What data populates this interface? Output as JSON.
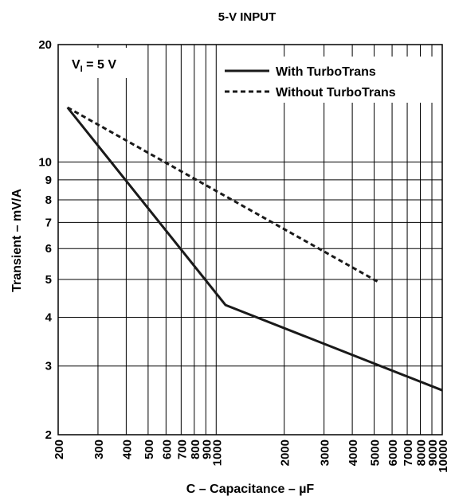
{
  "chart_data": {
    "type": "line",
    "title": "5-V INPUT",
    "xlabel": "C – Capacitance – µF",
    "ylabel": "Transient – mV/A",
    "x_scale": "log",
    "y_scale": "log",
    "xlim": [
      200,
      10000
    ],
    "ylim": [
      2,
      20
    ],
    "grid": true,
    "legend_position": "top-right",
    "x_ticks": [
      200,
      300,
      400,
      500,
      600,
      700,
      800,
      900,
      1000,
      2000,
      3000,
      4000,
      5000,
      6000,
      7000,
      8000,
      9000,
      10000
    ],
    "x_tick_labels": [
      "200",
      "300",
      "400",
      "500",
      "600",
      "700",
      "800",
      "900",
      "1000",
      "2000",
      "3000",
      "4000",
      "5000",
      "6000",
      "7000",
      "8000",
      "9000",
      "10000"
    ],
    "y_ticks": [
      2,
      3,
      4,
      5,
      6,
      7,
      8,
      9,
      10,
      20
    ],
    "y_tick_labels": [
      "2",
      "3",
      "4",
      "5",
      "6",
      "7",
      "8",
      "9",
      "10",
      "20"
    ],
    "annotation": {
      "main": "V",
      "sub": "I",
      "rest": " = 5 V"
    },
    "series": [
      {
        "name": "With TurboTrans",
        "style": "solid",
        "x": [
          220,
          1100,
          10000
        ],
        "y": [
          13.8,
          4.3,
          2.6
        ]
      },
      {
        "name": "Without TurboTrans",
        "style": "dashed",
        "x": [
          220,
          5300
        ],
        "y": [
          13.8,
          4.9
        ]
      }
    ],
    "colors": {
      "line": "#1a1a1a",
      "grid": "#000000",
      "background": "#ffffff"
    }
  }
}
